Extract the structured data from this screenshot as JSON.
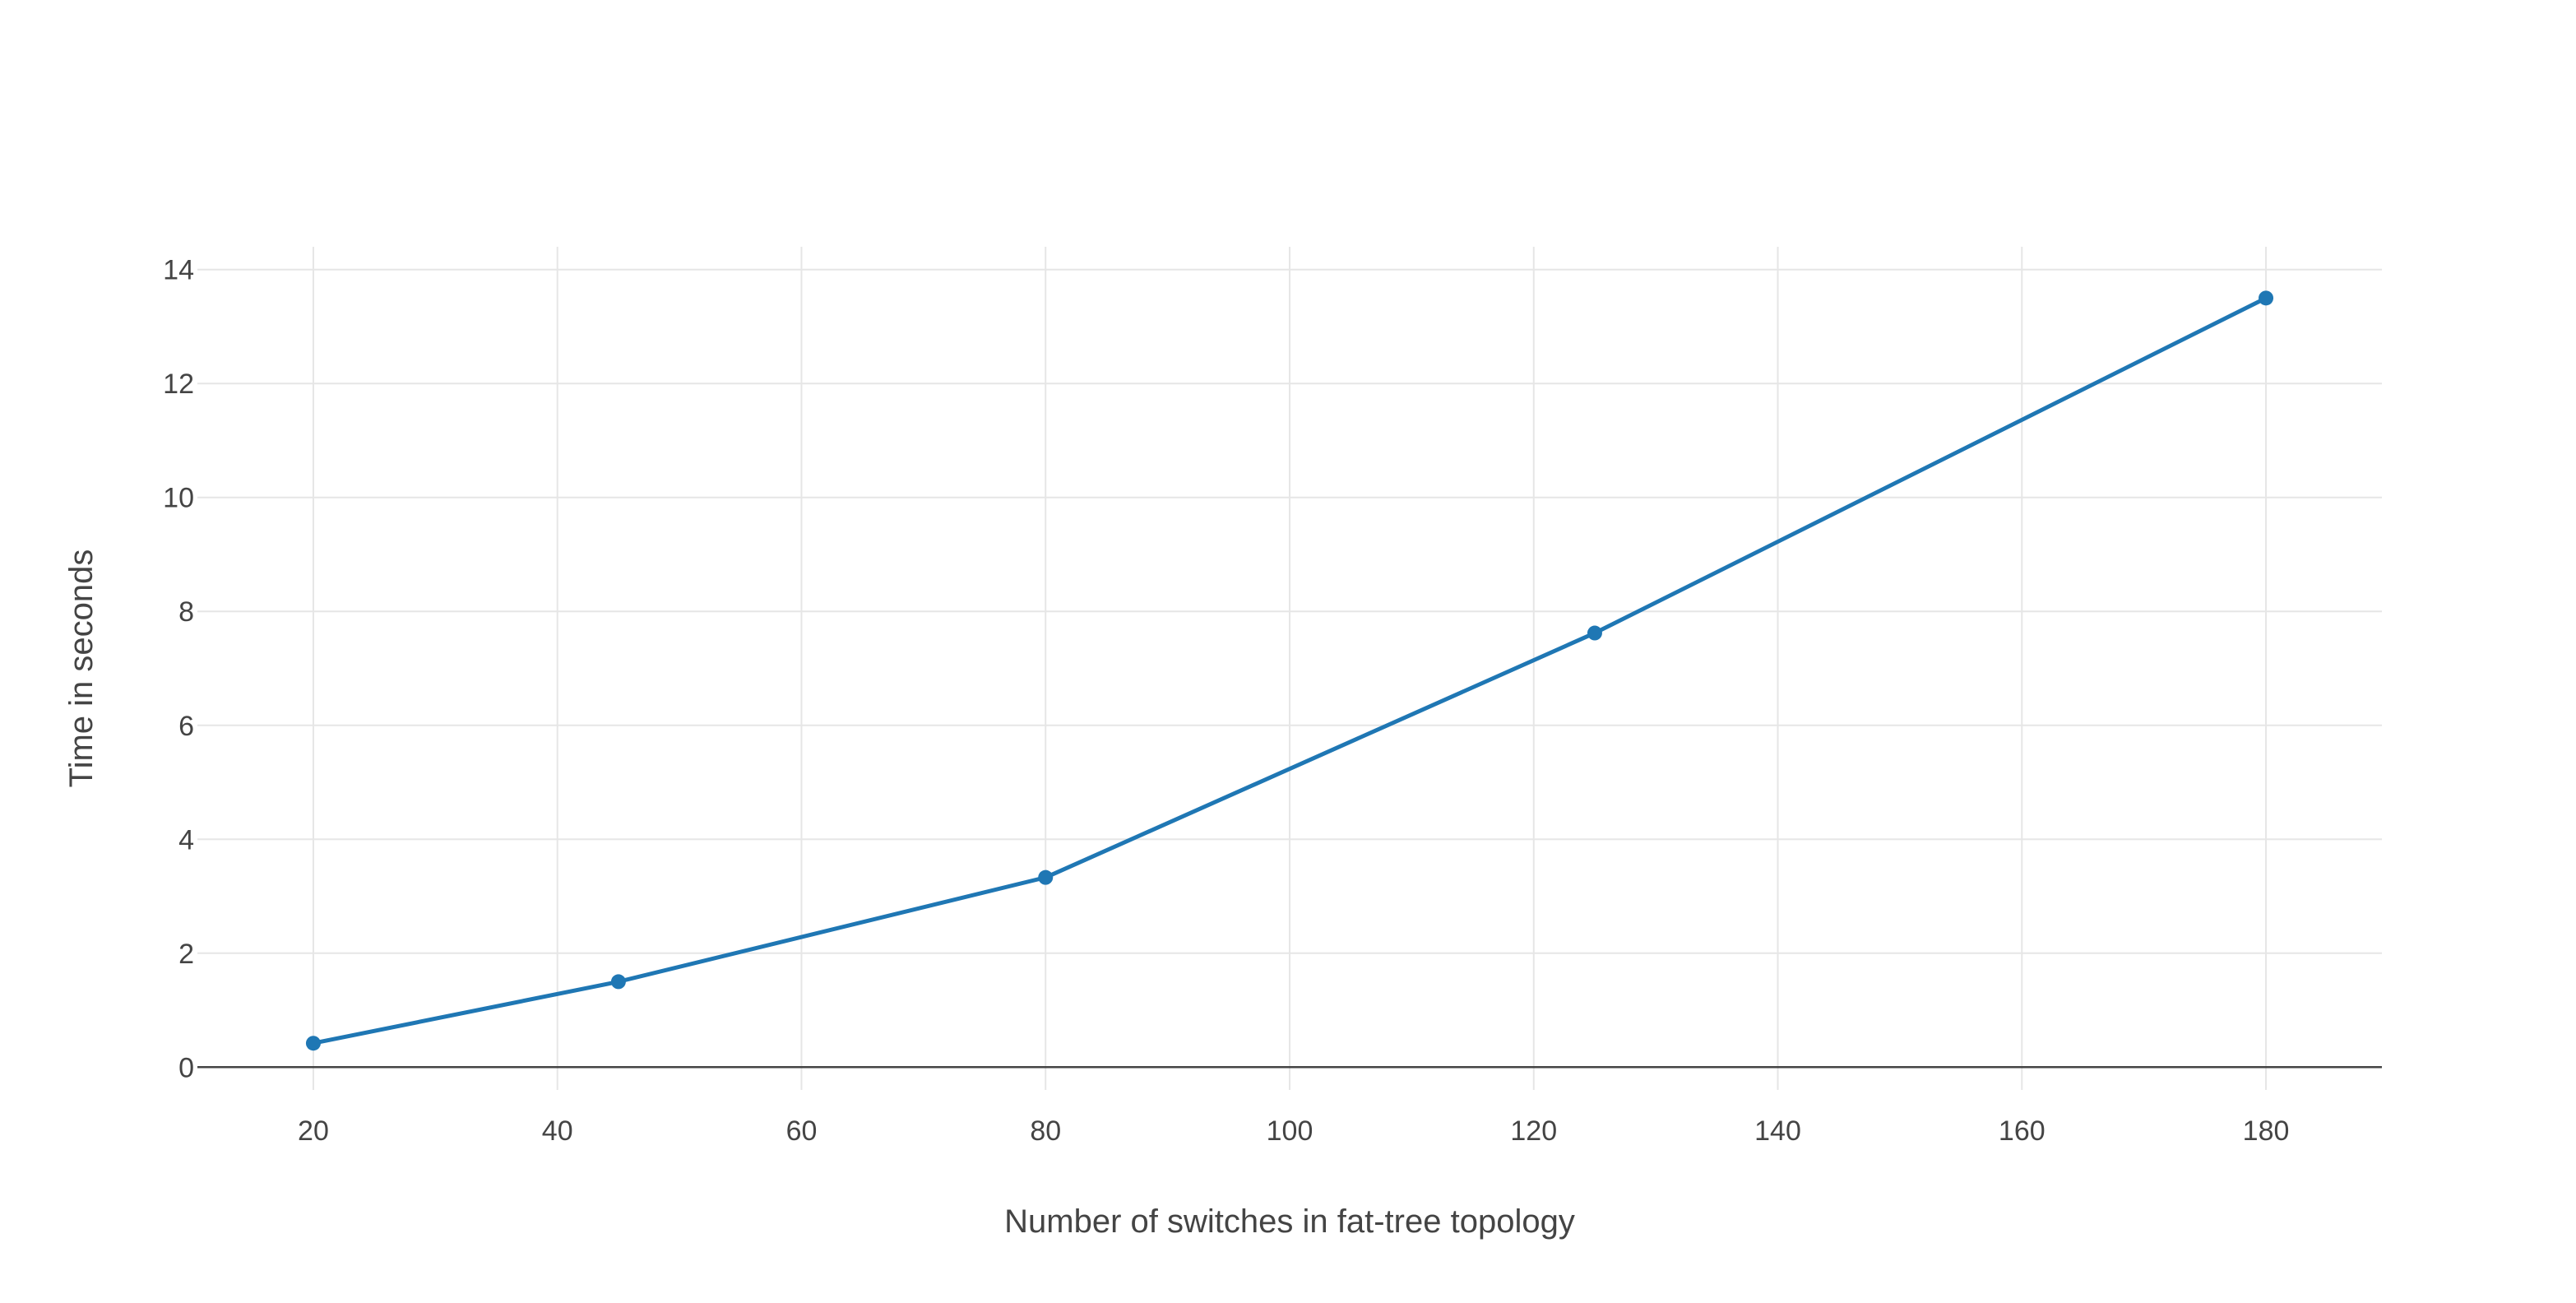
{
  "chart_data": {
    "type": "line",
    "title": "",
    "xlabel": "Number of switches in fat-tree topology",
    "ylabel": "Time in seconds",
    "xlim": [
      10.5,
      189.5
    ],
    "ylim": [
      -0.4,
      14.4
    ],
    "x_ticks": [
      20,
      40,
      60,
      80,
      100,
      120,
      140,
      160,
      180
    ],
    "y_ticks": [
      0,
      2,
      4,
      6,
      8,
      10,
      12,
      14
    ],
    "grid": true,
    "legend": "none",
    "series": [
      {
        "color": "#1f77b4",
        "x": [
          20,
          45,
          80,
          125,
          180
        ],
        "y": [
          0.42,
          1.5,
          3.33,
          7.62,
          13.5
        ]
      }
    ]
  }
}
